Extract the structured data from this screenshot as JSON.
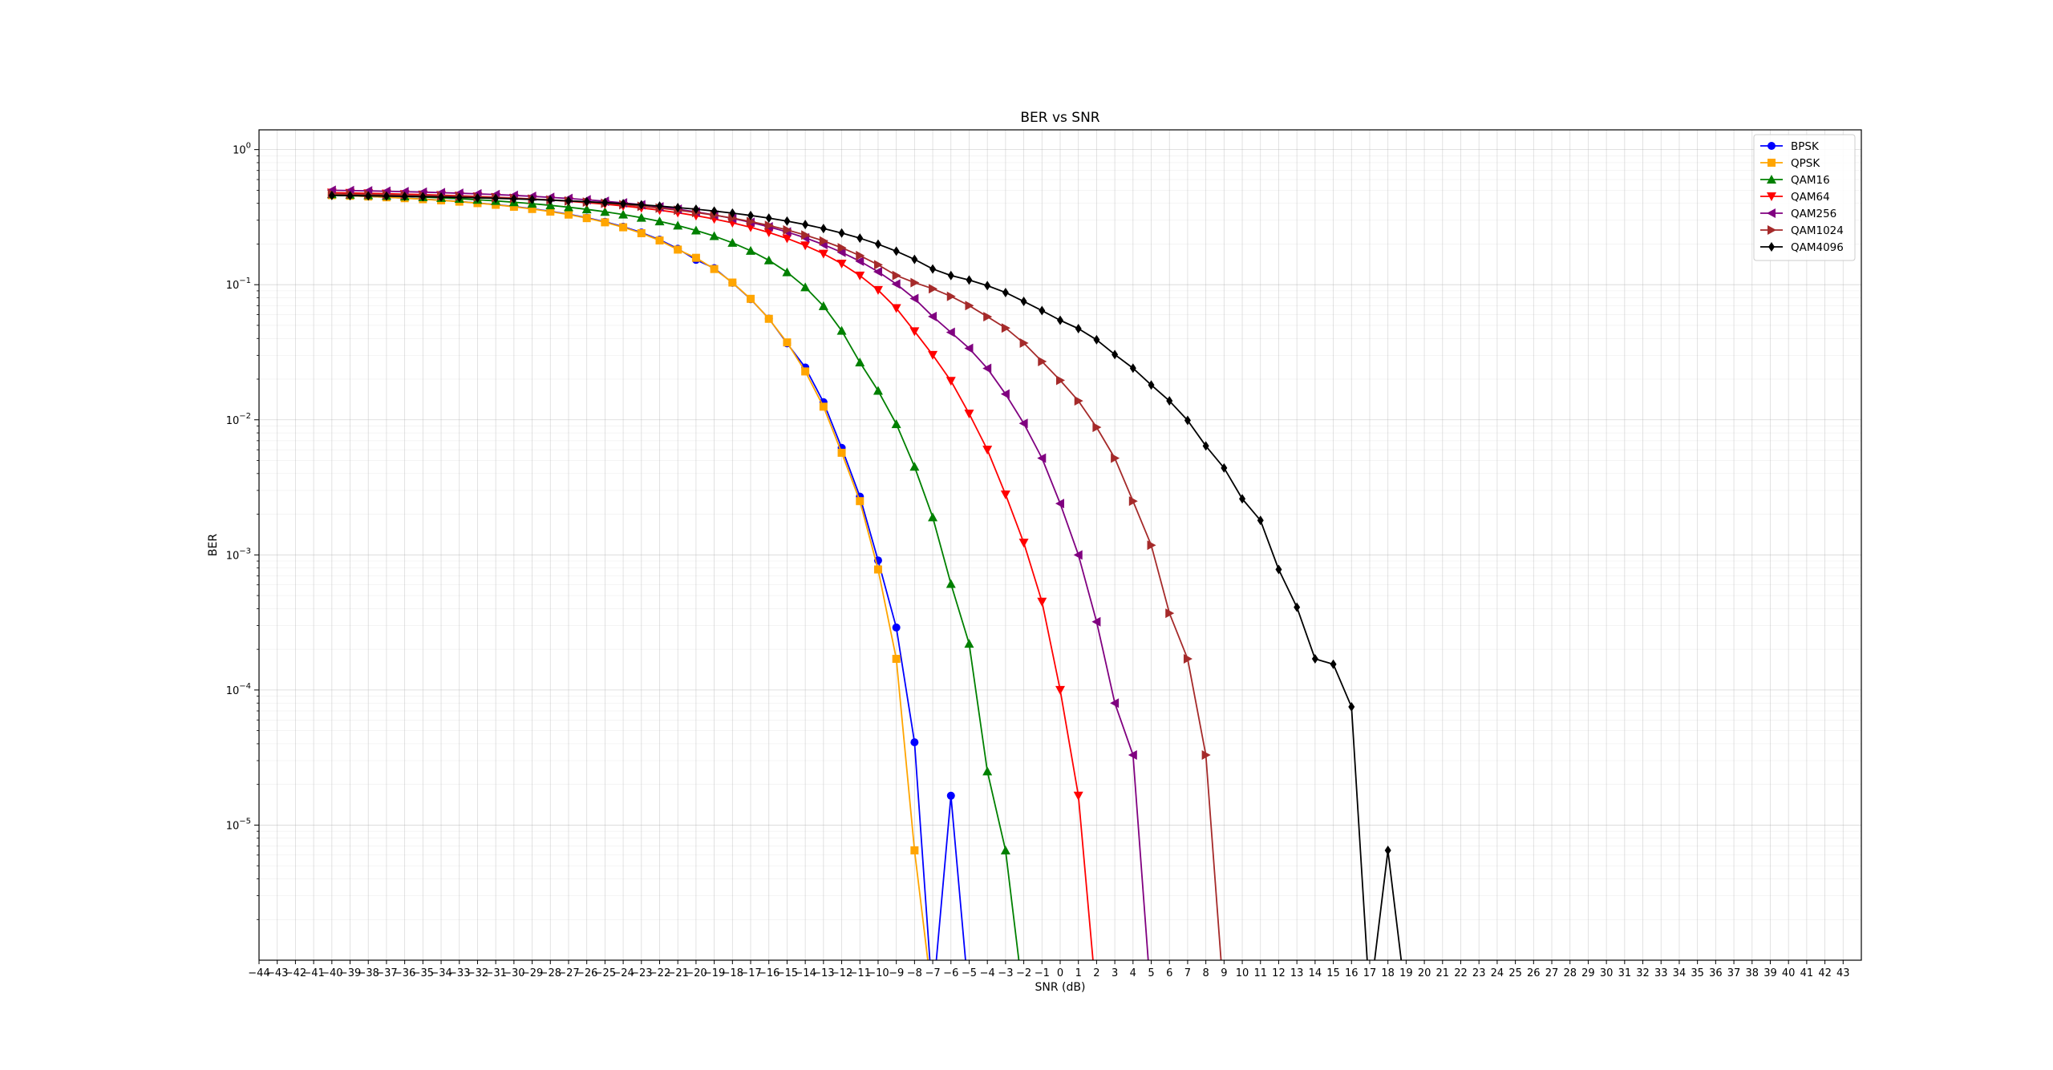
{
  "chart_data": {
    "type": "line",
    "title": "BER vs SNR",
    "xlabel": "SNR (dB)",
    "ylabel": "BER",
    "xscale": "linear",
    "yscale": "log",
    "xlim": [
      -44,
      44
    ],
    "ylim": [
      1e-06,
      1.4
    ],
    "x_ticks": [
      -44,
      -43,
      -42,
      -41,
      -40,
      -39,
      -38,
      -37,
      -36,
      -35,
      -34,
      -33,
      -32,
      -31,
      -30,
      -29,
      -28,
      -27,
      -26,
      -25,
      -24,
      -23,
      -22,
      -21,
      -20,
      -19,
      -18,
      -17,
      -16,
      -15,
      -14,
      -13,
      -12,
      -11,
      -10,
      -9,
      -8,
      -7,
      -6,
      -5,
      -4,
      -3,
      -2,
      -1,
      0,
      1,
      2,
      3,
      4,
      5,
      6,
      7,
      8,
      9,
      10,
      11,
      12,
      13,
      14,
      15,
      16,
      17,
      18,
      19,
      20,
      21,
      22,
      23,
      24,
      25,
      26,
      27,
      28,
      29,
      30,
      31,
      32,
      33,
      34,
      35,
      36,
      37,
      38,
      39,
      40,
      41,
      42,
      43
    ],
    "y_ticks": [
      {
        "value": 1,
        "label_base": "10",
        "label_exp": "0"
      },
      {
        "value": 0.1,
        "label_base": "10",
        "label_exp": "−1"
      },
      {
        "value": 0.01,
        "label_base": "10",
        "label_exp": "−2"
      },
      {
        "value": 0.001,
        "label_base": "10",
        "label_exp": "−3"
      },
      {
        "value": 0.0001,
        "label_base": "10",
        "label_exp": "−4"
      },
      {
        "value": 1e-05,
        "label_base": "10",
        "label_exp": "−5"
      }
    ],
    "grid": true,
    "legend_position": "top-right",
    "series": [
      {
        "name": "BPSK",
        "color": "#0000ff",
        "marker": "circle",
        "x": [
          -40,
          -39,
          -38,
          -37,
          -36,
          -35,
          -34,
          -33,
          -32,
          -31,
          -30,
          -29,
          -28,
          -27,
          -26,
          -25,
          -24,
          -23,
          -22,
          -21,
          -20,
          -19,
          -18,
          -17,
          -16,
          -15,
          -14,
          -13,
          -12,
          -11,
          -10,
          -9,
          -8,
          -7,
          -6,
          -5
        ],
        "y": [
          0.4605,
          0.4556,
          0.4502,
          0.4442,
          0.4375,
          0.4302,
          0.4219,
          0.4128,
          0.4027,
          0.3914,
          0.3789,
          0.365,
          0.3495,
          0.3323,
          0.3132,
          0.2921,
          0.2686,
          0.2431,
          0.2152,
          0.1845,
          0.1528,
          0.1326,
          0.1032,
          0.0782,
          0.0561,
          0.0368,
          0.0244,
          0.0135,
          0.0062,
          0.0027,
          0.00091,
          0.00029,
          4.1e-05,
          5e-07,
          1.65e-05,
          5e-07
        ]
      },
      {
        "name": "QPSK",
        "color": "#ffa500",
        "marker": "square",
        "x": [
          -40,
          -39,
          -38,
          -37,
          -36,
          -35,
          -34,
          -33,
          -32,
          -31,
          -30,
          -29,
          -28,
          -27,
          -26,
          -25,
          -24,
          -23,
          -22,
          -21,
          -20,
          -19,
          -18,
          -17,
          -16,
          -15,
          -14,
          -13,
          -12,
          -11,
          -10,
          -9,
          -8,
          -7
        ],
        "y": [
          0.4602,
          0.4553,
          0.4497,
          0.4436,
          0.4369,
          0.4293,
          0.421,
          0.4118,
          0.4014,
          0.3901,
          0.3774,
          0.3632,
          0.3475,
          0.3302,
          0.3109,
          0.2895,
          0.266,
          0.2404,
          0.2124,
          0.1818,
          0.1581,
          0.1306,
          0.1037,
          0.0786,
          0.0559,
          0.0374,
          0.0228,
          0.0125,
          0.0057,
          0.0025,
          0.00078,
          0.00017,
          6.5e-06,
          5e-07
        ]
      },
      {
        "name": "QAM16",
        "color": "#008000",
        "marker": "triangle-up",
        "x": [
          -40,
          -39,
          -38,
          -37,
          -36,
          -35,
          -34,
          -33,
          -32,
          -31,
          -30,
          -29,
          -28,
          -27,
          -26,
          -25,
          -24,
          -23,
          -22,
          -21,
          -20,
          -19,
          -18,
          -17,
          -16,
          -15,
          -14,
          -13,
          -12,
          -11,
          -10,
          -9,
          -8,
          -7,
          -6,
          -5,
          -4,
          -3,
          -2
        ],
        "y": [
          0.4676,
          0.464,
          0.46,
          0.4555,
          0.4506,
          0.4452,
          0.4392,
          0.4326,
          0.4252,
          0.417,
          0.4079,
          0.3979,
          0.3868,
          0.3747,
          0.3612,
          0.3466,
          0.3306,
          0.3132,
          0.2943,
          0.274,
          0.2522,
          0.229,
          0.2042,
          0.1784,
          0.1515,
          0.1238,
          0.0958,
          0.0695,
          0.0456,
          0.0266,
          0.0164,
          0.0093,
          0.0045,
          0.0019,
          0.00061,
          0.00022,
          2.5e-05,
          6.5e-06,
          5e-07
        ]
      },
      {
        "name": "QAM64",
        "color": "#ff0000",
        "marker": "triangle-down",
        "x": [
          -40,
          -39,
          -38,
          -37,
          -36,
          -35,
          -34,
          -33,
          -32,
          -31,
          -30,
          -29,
          -28,
          -27,
          -26,
          -25,
          -24,
          -23,
          -22,
          -21,
          -20,
          -19,
          -18,
          -17,
          -16,
          -15,
          -14,
          -13,
          -12,
          -11,
          -10,
          -9,
          -8,
          -7,
          -6,
          -5,
          -4,
          -3,
          -2,
          -1,
          0,
          1,
          2
        ],
        "y": [
          0.4798,
          0.4773,
          0.4745,
          0.4714,
          0.4679,
          0.4641,
          0.4599,
          0.4552,
          0.45,
          0.4442,
          0.4378,
          0.4307,
          0.4229,
          0.4142,
          0.4047,
          0.3942,
          0.3826,
          0.3699,
          0.356,
          0.3408,
          0.3243,
          0.3063,
          0.2869,
          0.266,
          0.2437,
          0.22,
          0.1951,
          0.1694,
          0.1431,
          0.1168,
          0.0912,
          0.067,
          0.0452,
          0.0302,
          0.0194,
          0.0111,
          0.006,
          0.0028,
          0.00123,
          0.00045,
          0.0001,
          1.65e-05,
          5e-07
        ]
      },
      {
        "name": "QAM256",
        "color": "#800080",
        "marker": "triangle-left",
        "x": [
          -40,
          -39,
          -38,
          -37,
          -36,
          -35,
          -34,
          -33,
          -32,
          -31,
          -30,
          -29,
          -28,
          -27,
          -26,
          -25,
          -24,
          -23,
          -22,
          -21,
          -20,
          -19,
          -18,
          -17,
          -16,
          -15,
          -14,
          -13,
          -12,
          -11,
          -10,
          -9,
          -8,
          -7,
          -6,
          -5,
          -4,
          -3,
          -2,
          -1,
          0,
          1,
          2,
          3,
          4,
          5,
          6
        ],
        "y": [
          0.5,
          0.4975,
          0.4947,
          0.4916,
          0.4881,
          0.4843,
          0.4801,
          0.4754,
          0.4702,
          0.4644,
          0.458,
          0.4509,
          0.4431,
          0.4345,
          0.425,
          0.4146,
          0.4031,
          0.3906,
          0.3769,
          0.362,
          0.3458,
          0.3284,
          0.3096,
          0.2895,
          0.2682,
          0.2456,
          0.2222,
          0.1981,
          0.1737,
          0.1492,
          0.1247,
          0.1011,
          0.0789,
          0.0582,
          0.0444,
          0.0338,
          0.024,
          0.0155,
          0.0094,
          0.0052,
          0.0024,
          0.001,
          0.00032,
          8e-05,
          3.3e-05,
          5e-07,
          5e-07
        ]
      },
      {
        "name": "QAM1024",
        "color": "#a52a2a",
        "marker": "triangle-right",
        "x": [
          -40,
          -39,
          -38,
          -37,
          -36,
          -35,
          -34,
          -33,
          -32,
          -31,
          -30,
          -29,
          -28,
          -27,
          -26,
          -25,
          -24,
          -23,
          -22,
          -21,
          -20,
          -19,
          -18,
          -17,
          -16,
          -15,
          -14,
          -13,
          -12,
          -11,
          -10,
          -9,
          -8,
          -7,
          -6,
          -5,
          -4,
          -3,
          -2,
          -1,
          0,
          1,
          2,
          3,
          4,
          5,
          6,
          7,
          8,
          9,
          10,
          11,
          12
        ],
        "y": [
          0.47,
          0.468,
          0.4658,
          0.4633,
          0.4605,
          0.4574,
          0.454,
          0.4502,
          0.446,
          0.4413,
          0.4361,
          0.4303,
          0.4239,
          0.4168,
          0.409,
          0.4003,
          0.3908,
          0.3803,
          0.3688,
          0.3561,
          0.3423,
          0.3273,
          0.311,
          0.2934,
          0.2745,
          0.2544,
          0.2331,
          0.2108,
          0.1877,
          0.1641,
          0.1404,
          0.117,
          0.1036,
          0.0934,
          0.082,
          0.07,
          0.058,
          0.0478,
          0.037,
          0.027,
          0.0196,
          0.0138,
          0.0088,
          0.0052,
          0.0025,
          0.00118,
          0.00037,
          0.00017,
          3.3e-05,
          5e-07,
          5e-07,
          5e-07,
          5e-07
        ]
      },
      {
        "name": "QAM4096",
        "color": "#000000",
        "marker": "diamond",
        "x": [
          -40,
          -39,
          -38,
          -37,
          -36,
          -35,
          -34,
          -33,
          -32,
          -31,
          -30,
          -29,
          -28,
          -27,
          -26,
          -25,
          -24,
          -23,
          -22,
          -21,
          -20,
          -19,
          -18,
          -17,
          -16,
          -15,
          -14,
          -13,
          -12,
          -11,
          -10,
          -9,
          -8,
          -7,
          -6,
          -5,
          -4,
          -3,
          -2,
          -1,
          0,
          1,
          2,
          3,
          4,
          5,
          6,
          7,
          8,
          9,
          10,
          11,
          12,
          13,
          14,
          15,
          16,
          17,
          18,
          19,
          20,
          21,
          22,
          23
        ],
        "y": [
          0.4576,
          0.4561,
          0.4544,
          0.4525,
          0.4504,
          0.448,
          0.4454,
          0.4425,
          0.4393,
          0.4357,
          0.4318,
          0.4274,
          0.4226,
          0.4173,
          0.4114,
          0.405,
          0.3979,
          0.3901,
          0.3816,
          0.3722,
          0.362,
          0.3508,
          0.3386,
          0.3254,
          0.311,
          0.2954,
          0.2786,
          0.2606,
          0.2413,
          0.2209,
          0.1994,
          0.177,
          0.154,
          0.1307,
          0.1169,
          0.1082,
          0.0984,
          0.0875,
          0.0752,
          0.0643,
          0.0545,
          0.0473,
          0.0391,
          0.0304,
          0.0241,
          0.0181,
          0.0138,
          0.0099,
          0.0064,
          0.0044,
          0.0026,
          0.0018,
          0.00078,
          0.00041,
          0.00017,
          0.000155,
          7.5e-05,
          5e-07,
          6.5e-06,
          5e-07,
          5e-07,
          5e-07,
          5e-07,
          5e-07
        ]
      }
    ]
  }
}
